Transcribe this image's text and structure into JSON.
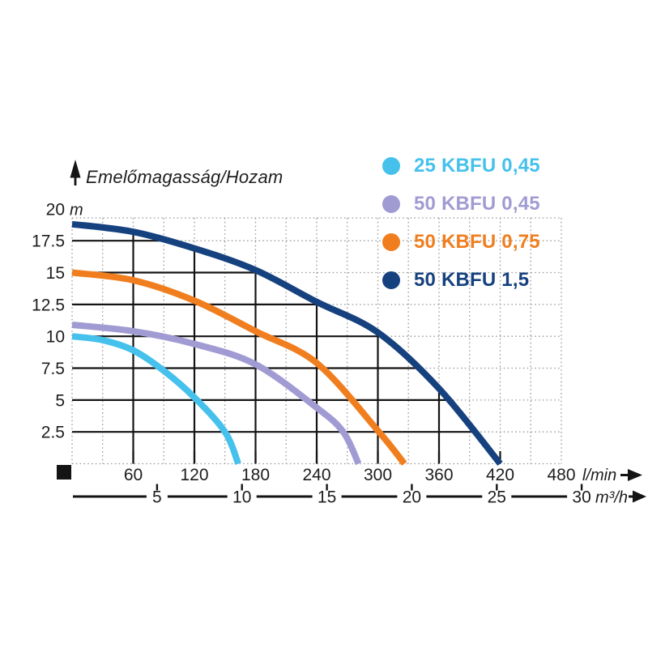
{
  "chart": {
    "title": "Emelőmagasság/Hozam",
    "y_unit": "m",
    "x_unit": "l/min",
    "x2_unit": "m³/h"
  },
  "legend": {
    "items": [
      {
        "label": "25 KBFU 0,45",
        "color": "#45c1ec"
      },
      {
        "label": "50 KBFU 0,45",
        "color": "#a19bd3"
      },
      {
        "label": "50 KBFU 0,75",
        "color": "#f07e1e"
      },
      {
        "label": "50 KBFU 1,5",
        "color": "#16417f"
      }
    ]
  },
  "chart_data": {
    "type": "line",
    "title": "Emelőmagasság/Hozam",
    "xlabel": "l/min",
    "x2label": "m³/h",
    "ylabel": "m",
    "xlim": [
      0,
      480
    ],
    "ylim": [
      0,
      20
    ],
    "x_ticks_lmin": [
      60,
      120,
      180,
      240,
      300,
      360,
      420,
      480
    ],
    "x2_ticks_m3h": [
      5,
      10,
      15,
      20,
      25,
      30
    ],
    "y_ticks_m": [
      2.5,
      5,
      7.5,
      10,
      12.5,
      15,
      17.5,
      20
    ],
    "grid": {
      "dotted_step_lmin": 30,
      "dotted_step_m": 2.5,
      "solid_inside_envelope": true
    },
    "legend_position": "top-right",
    "series": [
      {
        "name": "25 KBFU 0,45",
        "color": "#45c1ec",
        "points": [
          [
            0,
            10
          ],
          [
            30,
            9.7
          ],
          [
            60,
            8.9
          ],
          [
            90,
            7.3
          ],
          [
            120,
            5.2
          ],
          [
            150,
            2.5
          ],
          [
            163,
            0
          ]
        ]
      },
      {
        "name": "50 KBFU 0,45",
        "color": "#a19bd3",
        "points": [
          [
            0,
            10.9
          ],
          [
            60,
            10.4
          ],
          [
            120,
            9.4
          ],
          [
            180,
            7.8
          ],
          [
            240,
            4.4
          ],
          [
            266,
            2.5
          ],
          [
            281,
            0
          ]
        ]
      },
      {
        "name": "50 KBFU 0,75",
        "color": "#f07e1e",
        "points": [
          [
            0,
            15
          ],
          [
            60,
            14.4
          ],
          [
            120,
            12.8
          ],
          [
            180,
            10.4
          ],
          [
            240,
            7.9
          ],
          [
            300,
            2.6
          ],
          [
            326,
            0
          ]
        ]
      },
      {
        "name": "50 KBFU 1,5",
        "color": "#16417f",
        "points": [
          [
            0,
            18.8
          ],
          [
            60,
            18.2
          ],
          [
            120,
            16.9
          ],
          [
            180,
            15.2
          ],
          [
            240,
            12.7
          ],
          [
            300,
            10.3
          ],
          [
            360,
            5.9
          ],
          [
            420,
            0
          ]
        ]
      }
    ]
  }
}
